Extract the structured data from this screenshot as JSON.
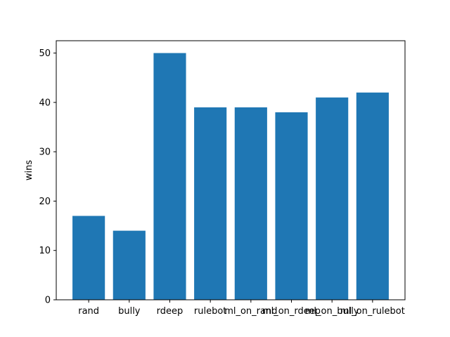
{
  "chart_data": {
    "type": "bar",
    "categories": [
      "rand",
      "bully",
      "rdeep",
      "rulebot",
      "ml_on_rand",
      "ml_on_rdeep",
      "ml_on_bully",
      "ml_on_rulebot"
    ],
    "values": [
      17,
      14,
      50,
      39,
      39,
      38,
      41,
      42
    ],
    "title": "",
    "xlabel": "",
    "ylabel": "wins",
    "ylim": [
      0,
      52.5
    ],
    "yticks": [
      0,
      10,
      20,
      30,
      40,
      50
    ],
    "grid": false,
    "bar_color": "#1f77b4"
  }
}
